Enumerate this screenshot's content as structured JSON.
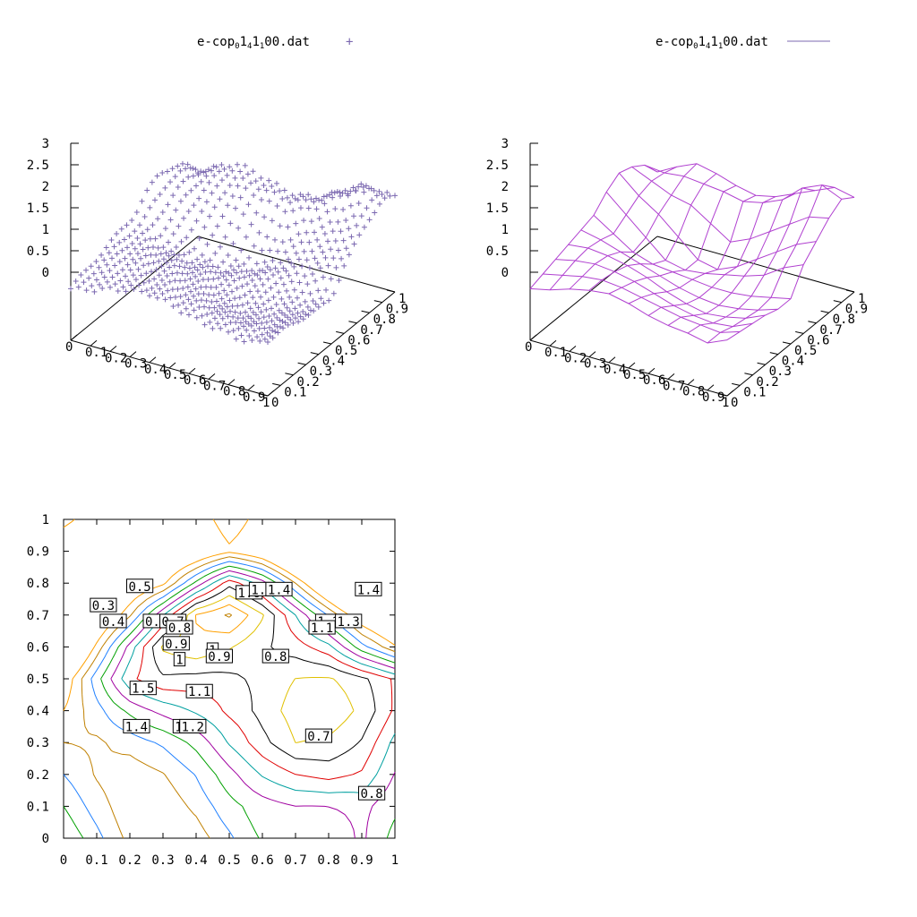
{
  "chart_data": [
    {
      "type": "scatter",
      "plot": "3d-points",
      "legend": {
        "text_pre": "e-cop",
        "sub1": "0",
        "mid1": "1",
        "sub2": "4",
        "mid2": "1",
        "sub3": "1",
        "text_post": "00.dat",
        "marker": "+"
      },
      "color": "#7b68b0",
      "xlim": [
        0,
        1
      ],
      "ylim": [
        0,
        1
      ],
      "zlim": [
        0,
        3
      ],
      "x_ticks": [
        "0",
        "0.1",
        "0.2",
        "0.3",
        "0.4",
        "0.5",
        "0.6",
        "0.7",
        "0.8",
        "0.9",
        "1"
      ],
      "y_ticks": [
        "0",
        "0.1",
        "0.2",
        "0.3",
        "0.4",
        "0.5",
        "0.6",
        "0.7",
        "0.8",
        "0.9",
        "1"
      ],
      "z_ticks": [
        "0",
        "0.5",
        "1",
        "1.5",
        "2",
        "2.5",
        "3"
      ]
    },
    {
      "type": "line",
      "plot": "3d-mesh",
      "legend": {
        "text_pre": "e-cop",
        "sub1": "0",
        "mid1": "1",
        "sub2": "4",
        "mid2": "1",
        "sub3": "1",
        "text_post": "00.dat",
        "marker": "line"
      },
      "color": "#b040d0",
      "xlim": [
        0,
        1
      ],
      "ylim": [
        0,
        1
      ],
      "zlim": [
        0,
        3
      ],
      "x": [
        0,
        0.1,
        0.2,
        0.3,
        0.4,
        0.5,
        0.6,
        0.7,
        0.8,
        0.9,
        1
      ],
      "y": [
        0,
        0.1,
        0.2,
        0.3,
        0.4,
        0.5,
        0.6,
        0.7,
        0.8,
        0.9,
        1
      ],
      "z_grid": [
        [
          1.2,
          1.3,
          1.45,
          1.55,
          1.6,
          1.5,
          1.35,
          1.25,
          1.2,
          1.1,
          1.3
        ],
        [
          1.3,
          1.4,
          1.5,
          1.55,
          1.5,
          1.4,
          1.3,
          1.2,
          1.15,
          1.1,
          1.25
        ],
        [
          1.4,
          1.5,
          1.55,
          1.5,
          1.4,
          1.25,
          1.1,
          1.0,
          0.95,
          1.0,
          1.2
        ],
        [
          1.5,
          1.55,
          1.5,
          1.4,
          1.25,
          1.05,
          0.9,
          0.8,
          0.85,
          0.95,
          1.15
        ],
        [
          1.6,
          1.5,
          1.35,
          1.2,
          1.05,
          0.9,
          0.8,
          0.75,
          0.8,
          0.9,
          1.05
        ],
        [
          1.7,
          1.4,
          1.1,
          0.95,
          0.9,
          0.85,
          0.8,
          0.8,
          0.85,
          0.95,
          1.05
        ],
        [
          2.0,
          1.6,
          1.2,
          0.8,
          0.7,
          0.75,
          0.85,
          0.95,
          1.1,
          1.4,
          1.6
        ],
        [
          2.2,
          1.8,
          1.5,
          1.1,
          0.7,
          0.6,
          0.8,
          1.1,
          1.4,
          1.7,
          1.9
        ],
        [
          2.1,
          1.9,
          1.7,
          1.6,
          1.3,
          1.0,
          1.2,
          1.5,
          1.8,
          2.1,
          2.2
        ],
        [
          1.9,
          1.85,
          1.9,
          1.85,
          1.8,
          1.7,
          1.8,
          2.0,
          2.4,
          2.6,
          2.4
        ],
        [
          1.5,
          1.75,
          1.95,
          1.85,
          1.7,
          1.6,
          1.7,
          1.9,
          2.1,
          2.3,
          2.2
        ]
      ],
      "x_ticks": [
        "0",
        "0.1",
        "0.2",
        "0.3",
        "0.4",
        "0.5",
        "0.6",
        "0.7",
        "0.8",
        "0.9",
        "1"
      ],
      "y_ticks": [
        "0",
        "0.1",
        "0.2",
        "0.3",
        "0.4",
        "0.5",
        "0.6",
        "0.7",
        "0.8",
        "0.9",
        "1"
      ],
      "z_ticks": [
        "0",
        "0.5",
        "1",
        "1.5",
        "2",
        "2.5",
        "3"
      ]
    },
    {
      "type": "line",
      "plot": "contour",
      "xlim": [
        0,
        1
      ],
      "ylim": [
        0,
        1
      ],
      "x_ticks": [
        "0",
        "0.1",
        "0.2",
        "0.3",
        "0.4",
        "0.5",
        "0.6",
        "0.7",
        "0.8",
        "0.9",
        "1"
      ],
      "y_ticks": [
        "0",
        "0.1",
        "0.2",
        "0.3",
        "0.4",
        "0.5",
        "0.6",
        "0.7",
        "0.8",
        "0.9",
        "1"
      ],
      "level_colors": [
        "#a000a0",
        "#00a000",
        "#2080ff",
        "#c08000",
        "#ffa000",
        "#e0c000",
        "#000000",
        "#e00000",
        "#00a0a0"
      ],
      "contour_labels": [
        {
          "text": "0.3",
          "x": 0.12,
          "y": 0.73
        },
        {
          "text": "0.5",
          "x": 0.23,
          "y": 0.79
        },
        {
          "text": "0.4",
          "x": 0.15,
          "y": 0.68
        },
        {
          "text": "0.6",
          "x": 0.28,
          "y": 0.68
        },
        {
          "text": "0.7",
          "x": 0.33,
          "y": 0.68
        },
        {
          "text": "0.8",
          "x": 0.35,
          "y": 0.66
        },
        {
          "text": "0.9",
          "x": 0.34,
          "y": 0.61
        },
        {
          "text": "1",
          "x": 0.35,
          "y": 0.56
        },
        {
          "text": "1.6",
          "x": 0.56,
          "y": 0.77
        },
        {
          "text": "1.5",
          "x": 0.6,
          "y": 0.78
        },
        {
          "text": "1.4",
          "x": 0.65,
          "y": 0.78
        },
        {
          "text": "1.4",
          "x": 0.92,
          "y": 0.78
        },
        {
          "text": "1.2",
          "x": 0.8,
          "y": 0.68
        },
        {
          "text": "1.3",
          "x": 0.86,
          "y": 0.68
        },
        {
          "text": "1.1",
          "x": 0.78,
          "y": 0.66
        },
        {
          "text": "1",
          "x": 0.45,
          "y": 0.59
        },
        {
          "text": "0.9",
          "x": 0.47,
          "y": 0.57
        },
        {
          "text": "0.8",
          "x": 0.64,
          "y": 0.57
        },
        {
          "text": "1.5",
          "x": 0.24,
          "y": 0.47
        },
        {
          "text": "1.1",
          "x": 0.41,
          "y": 0.46
        },
        {
          "text": "1.4",
          "x": 0.22,
          "y": 0.35
        },
        {
          "text": "1.3",
          "x": 0.37,
          "y": 0.35
        },
        {
          "text": "1.2",
          "x": 0.39,
          "y": 0.35
        },
        {
          "text": "0.7",
          "x": 0.77,
          "y": 0.32
        },
        {
          "text": "0.8",
          "x": 0.93,
          "y": 0.14
        }
      ]
    }
  ]
}
